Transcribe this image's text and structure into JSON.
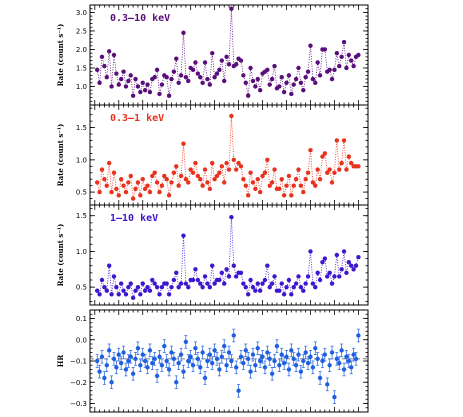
{
  "chart_data": [
    {
      "type": "scatter",
      "title": "0.3–10 keV",
      "ylabel": "Rate (count s⁻¹)",
      "ylim": [
        0.5,
        3.2
      ],
      "yticks": [
        1.0,
        1.5,
        2.0,
        2.5,
        3.0
      ],
      "ytick_labels": [
        "1.0",
        "1.5",
        "2.0",
        "2.5",
        "3.0"
      ],
      "color": "#5a0e7a",
      "x": [
        1,
        2,
        3,
        4,
        5,
        6,
        7,
        8,
        9,
        10,
        11,
        12,
        13,
        14,
        15,
        16,
        17,
        18,
        19,
        20,
        21,
        22,
        23,
        24,
        25,
        26,
        27,
        28,
        29,
        30,
        31,
        32,
        33,
        34,
        35,
        36,
        37,
        38,
        39,
        40,
        41,
        42,
        43,
        44,
        45,
        46,
        47,
        48,
        49,
        50,
        51,
        52,
        53,
        54,
        55,
        56,
        57,
        58,
        59,
        60,
        61,
        62,
        63,
        64,
        65,
        66,
        67,
        68,
        69,
        70,
        71,
        72,
        73,
        74,
        75,
        76,
        77,
        78,
        79,
        80,
        81,
        82,
        83,
        84,
        85,
        86,
        87,
        88,
        89,
        90,
        91,
        92,
        93,
        94,
        95,
        96,
        97,
        98,
        99,
        100,
        101,
        102,
        103,
        104,
        105,
        106,
        107,
        108,
        109,
        110
      ],
      "y": [
        1.45,
        1.1,
        1.8,
        1.55,
        1.25,
        1.95,
        1.0,
        1.85,
        1.35,
        1.05,
        1.2,
        1.4,
        1.0,
        1.15,
        1.3,
        0.75,
        1.2,
        1.0,
        0.85,
        1.1,
        0.9,
        1.05,
        0.85,
        1.2,
        1.25,
        1.45,
        0.8,
        1.05,
        1.3,
        1.25,
        0.75,
        1.2,
        1.4,
        1.75,
        1.1,
        1.3,
        2.45,
        1.25,
        1.15,
        1.5,
        1.45,
        1.65,
        1.35,
        1.25,
        1.1,
        1.65,
        1.2,
        1.05,
        1.9,
        1.25,
        1.35,
        1.45,
        1.7,
        1.15,
        1.8,
        1.6,
        3.1,
        1.55,
        1.6,
        1.75,
        1.7,
        1.3,
        1.1,
        0.75,
        1.5,
        1.15,
        1.0,
        1.2,
        0.9,
        1.35,
        1.4,
        1.45,
        1.05,
        1.2,
        1.55,
        0.95,
        1.0,
        1.25,
        0.85,
        1.1,
        1.3,
        0.8,
        1.05,
        1.2,
        1.5,
        1.1,
        0.9,
        1.25,
        1.4,
        2.1,
        1.2,
        1.1,
        1.65,
        1.3,
        2.0,
        2.0,
        1.4,
        1.45,
        1.2,
        1.45,
        1.9,
        1.55,
        1.8,
        2.2,
        1.5,
        1.85,
        1.7,
        1.55,
        1.8,
        1.85
      ],
      "xlim": [
        -2,
        114
      ]
    },
    {
      "type": "scatter",
      "title": "0.3–1 keV",
      "ylabel": "Rate (count s⁻¹)",
      "ylim": [
        0.3,
        1.85
      ],
      "yticks": [
        0.5,
        1.0,
        1.5
      ],
      "ytick_labels": [
        "0.5",
        "1.0",
        "1.5"
      ],
      "color": "#e8321e",
      "x": [
        1,
        2,
        3,
        4,
        5,
        6,
        7,
        8,
        9,
        10,
        11,
        12,
        13,
        14,
        15,
        16,
        17,
        18,
        19,
        20,
        21,
        22,
        23,
        24,
        25,
        26,
        27,
        28,
        29,
        30,
        31,
        32,
        33,
        34,
        35,
        36,
        37,
        38,
        39,
        40,
        41,
        42,
        43,
        44,
        45,
        46,
        47,
        48,
        49,
        50,
        51,
        52,
        53,
        54,
        55,
        56,
        57,
        58,
        59,
        60,
        61,
        62,
        63,
        64,
        65,
        66,
        67,
        68,
        69,
        70,
        71,
        72,
        73,
        74,
        75,
        76,
        77,
        78,
        79,
        80,
        81,
        82,
        83,
        84,
        85,
        86,
        87,
        88,
        89,
        90,
        91,
        92,
        93,
        94,
        95,
        96,
        97,
        98,
        99,
        100,
        101,
        102,
        103,
        104,
        105,
        106,
        107,
        108,
        109,
        110
      ],
      "y": [
        0.65,
        0.5,
        0.85,
        0.7,
        0.6,
        0.95,
        0.5,
        0.8,
        0.55,
        0.45,
        0.7,
        0.6,
        0.5,
        0.65,
        0.75,
        0.4,
        0.55,
        0.65,
        0.45,
        0.7,
        0.55,
        0.6,
        0.5,
        0.75,
        0.8,
        0.65,
        0.5,
        0.6,
        0.75,
        0.7,
        0.45,
        0.65,
        0.8,
        0.9,
        0.6,
        0.75,
        1.25,
        0.7,
        0.65,
        0.85,
        0.8,
        0.95,
        0.75,
        0.7,
        0.6,
        0.85,
        0.65,
        0.55,
        0.95,
        0.7,
        0.75,
        0.8,
        0.9,
        0.65,
        0.95,
        0.85,
        1.68,
        1.0,
        0.85,
        0.95,
        0.9,
        0.7,
        0.6,
        0.45,
        0.8,
        0.65,
        0.55,
        0.7,
        0.5,
        0.75,
        0.8,
        1.0,
        0.6,
        0.65,
        0.85,
        0.55,
        0.55,
        0.7,
        0.45,
        0.6,
        0.75,
        0.45,
        0.6,
        0.7,
        0.85,
        0.6,
        0.5,
        0.7,
        0.8,
        1.15,
        0.65,
        0.6,
        0.85,
        0.7,
        1.05,
        1.1,
        0.8,
        0.85,
        0.65,
        0.8,
        1.3,
        0.85,
        0.95,
        1.3,
        0.85,
        1.05,
        0.95,
        0.9,
        0.9,
        0.9
      ],
      "xlim": [
        -2,
        114
      ]
    },
    {
      "type": "scatter",
      "title": "1–10 keV",
      "ylabel": "Rate (count s⁻¹)",
      "ylim": [
        0.25,
        1.65
      ],
      "yticks": [
        0.5,
        1.0,
        1.5
      ],
      "ytick_labels": [
        "0.5",
        "1.0",
        "1.5"
      ],
      "color": "#3f16cf",
      "x": [
        1,
        2,
        3,
        4,
        5,
        6,
        7,
        8,
        9,
        10,
        11,
        12,
        13,
        14,
        15,
        16,
        17,
        18,
        19,
        20,
        21,
        22,
        23,
        24,
        25,
        26,
        27,
        28,
        29,
        30,
        31,
        32,
        33,
        34,
        35,
        36,
        37,
        38,
        39,
        40,
        41,
        42,
        43,
        44,
        45,
        46,
        47,
        48,
        49,
        50,
        51,
        52,
        53,
        54,
        55,
        56,
        57,
        58,
        59,
        60,
        61,
        62,
        63,
        64,
        65,
        66,
        67,
        68,
        69,
        70,
        71,
        72,
        73,
        74,
        75,
        76,
        77,
        78,
        79,
        80,
        81,
        82,
        83,
        84,
        85,
        86,
        87,
        88,
        89,
        90,
        91,
        92,
        93,
        94,
        95,
        96,
        97,
        98,
        99,
        100,
        101,
        102,
        103,
        104,
        105,
        106,
        107,
        108,
        109,
        110
      ],
      "y": [
        0.45,
        0.4,
        0.6,
        0.5,
        0.45,
        0.8,
        0.4,
        0.65,
        0.5,
        0.4,
        0.55,
        0.45,
        0.4,
        0.5,
        0.55,
        0.35,
        0.45,
        0.5,
        0.4,
        0.55,
        0.45,
        0.5,
        0.45,
        0.6,
        0.55,
        0.5,
        0.4,
        0.5,
        0.55,
        0.55,
        0.4,
        0.5,
        0.6,
        0.7,
        0.5,
        0.55,
        1.22,
        0.55,
        0.5,
        0.6,
        0.6,
        0.75,
        0.6,
        0.55,
        0.5,
        0.65,
        0.55,
        0.5,
        0.8,
        0.55,
        0.6,
        0.6,
        0.7,
        0.55,
        0.75,
        0.65,
        1.48,
        0.8,
        0.65,
        0.7,
        0.7,
        0.55,
        0.5,
        0.4,
        0.6,
        0.5,
        0.45,
        0.55,
        0.45,
        0.55,
        0.6,
        0.8,
        0.5,
        0.55,
        0.65,
        0.45,
        0.45,
        0.55,
        0.4,
        0.5,
        0.6,
        0.4,
        0.5,
        0.55,
        0.65,
        0.5,
        0.45,
        0.55,
        0.65,
        1.0,
        0.55,
        0.5,
        0.7,
        0.6,
        0.85,
        0.9,
        0.65,
        0.7,
        0.55,
        0.65,
        0.95,
        0.65,
        0.75,
        1.0,
        0.7,
        0.85,
        0.8,
        0.75,
        0.8,
        0.92
      ],
      "xlim": [
        -2,
        114
      ]
    },
    {
      "type": "scatter",
      "title": "",
      "ylabel": "HR",
      "ylim": [
        -0.34,
        0.14
      ],
      "yticks": [
        -0.3,
        -0.2,
        -0.1,
        0.0,
        0.1
      ],
      "ytick_labels": [
        "−0.3",
        "−0.2",
        "−0.1",
        "0.0",
        "0.1"
      ],
      "color": "#1f5fe0",
      "reference_line": -0.09,
      "error": 0.03,
      "x": [
        1,
        2,
        3,
        4,
        5,
        6,
        7,
        8,
        9,
        10,
        11,
        12,
        13,
        14,
        15,
        16,
        17,
        18,
        19,
        20,
        21,
        22,
        23,
        24,
        25,
        26,
        27,
        28,
        29,
        30,
        31,
        32,
        33,
        34,
        35,
        36,
        37,
        38,
        39,
        40,
        41,
        42,
        43,
        44,
        45,
        46,
        47,
        48,
        49,
        50,
        51,
        52,
        53,
        54,
        55,
        56,
        57,
        58,
        59,
        60,
        61,
        62,
        63,
        64,
        65,
        66,
        67,
        68,
        69,
        70,
        71,
        72,
        73,
        74,
        75,
        76,
        77,
        78,
        79,
        80,
        81,
        82,
        83,
        84,
        85,
        86,
        87,
        88,
        89,
        90,
        91,
        92,
        93,
        94,
        95,
        96,
        97,
        98,
        99,
        100,
        101,
        102,
        103,
        104,
        105,
        106,
        107,
        108,
        109,
        110
      ],
      "y": [
        -0.1,
        -0.15,
        -0.08,
        -0.18,
        -0.12,
        -0.05,
        -0.2,
        -0.09,
        -0.13,
        -0.07,
        -0.11,
        -0.06,
        -0.14,
        -0.1,
        -0.08,
        -0.16,
        -0.09,
        -0.04,
        -0.12,
        -0.07,
        -0.1,
        -0.13,
        -0.05,
        -0.11,
        -0.09,
        -0.17,
        -0.08,
        -0.12,
        -0.03,
        -0.1,
        -0.14,
        -0.06,
        -0.09,
        -0.2,
        -0.11,
        -0.07,
        -0.15,
        -0.01,
        -0.1,
        -0.08,
        -0.12,
        -0.04,
        -0.09,
        -0.13,
        -0.06,
        -0.18,
        -0.1,
        -0.07,
        -0.11,
        -0.05,
        -0.09,
        -0.14,
        -0.08,
        -0.03,
        -0.12,
        -0.06,
        -0.1,
        0.02,
        -0.13,
        -0.24,
        -0.08,
        -0.11,
        -0.05,
        -0.09,
        -0.15,
        -0.07,
        -0.12,
        -0.04,
        -0.1,
        -0.08,
        -0.13,
        -0.06,
        -0.09,
        -0.16,
        -0.1,
        -0.03,
        -0.12,
        -0.07,
        -0.11,
        -0.08,
        -0.14,
        -0.05,
        -0.09,
        -0.12,
        -0.07,
        -0.15,
        -0.1,
        -0.06,
        -0.11,
        -0.08,
        -0.13,
        -0.04,
        -0.09,
        -0.18,
        -0.1,
        -0.07,
        -0.21,
        -0.12,
        -0.06,
        -0.27,
        -0.09,
        -0.11,
        -0.05,
        -0.14,
        -0.08,
        -0.1,
        -0.13,
        -0.07,
        -0.09,
        0.02
      ],
      "xlim": [
        -2,
        114
      ]
    }
  ]
}
